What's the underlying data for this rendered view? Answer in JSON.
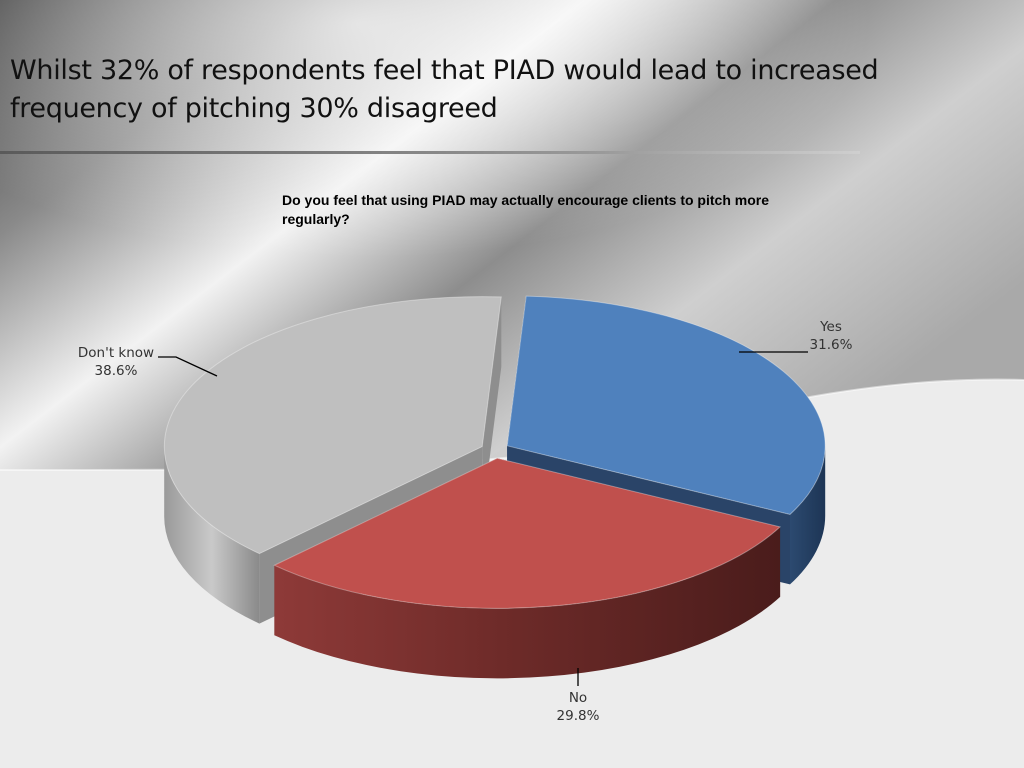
{
  "slide": {
    "title": "Whilst 32% of respondents feel that PIAD would lead to increased frequency of pitching 30% disagreed"
  },
  "chart_data": {
    "type": "pie",
    "title": "Do you feel that using PIAD may actually encourage clients to pitch more regularly?",
    "three_d": true,
    "exploded": true,
    "slices": [
      {
        "label": "Yes",
        "value": 31.6,
        "value_label": "31.6%",
        "color": "#4f81bd"
      },
      {
        "label": "No",
        "value": 29.8,
        "value_label": "29.8%",
        "color": "#c0504d"
      },
      {
        "label": "Don't know",
        "value": 38.6,
        "value_label": "38.6%",
        "color": "#bfbfbf"
      }
    ]
  }
}
